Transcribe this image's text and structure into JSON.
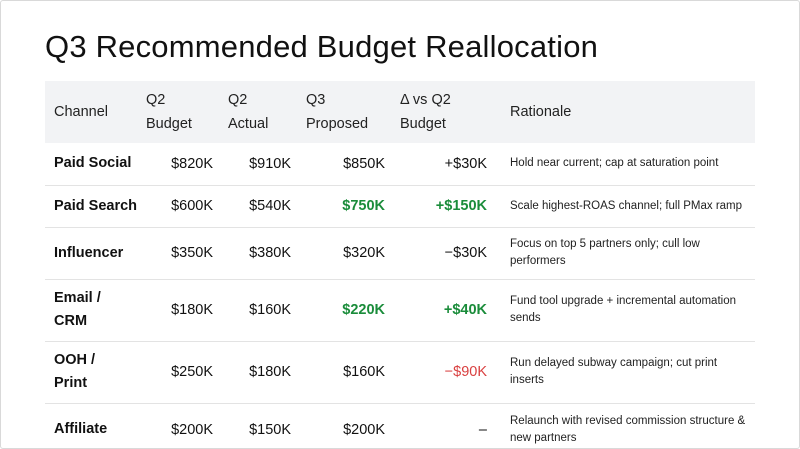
{
  "title": "Q3 Recommended Budget Reallocation",
  "colors": {
    "positive_highlight": "#1a8c3a",
    "negative_highlight": "#d94040",
    "header_background": "#f2f3f5"
  },
  "table": {
    "headers": {
      "channel": "Channel",
      "q2_budget": "Q2\nBudget",
      "q2_actual": "Q2\nActual",
      "q3_proposed": "Q3\nProposed",
      "delta": "Δ vs Q2\nBudget",
      "rationale": "Rationale"
    },
    "rows": [
      {
        "channel": "Paid Social",
        "q2_budget": "$820K",
        "q2_actual": "$910K",
        "q3_proposed": "$850K",
        "delta": "+$30K",
        "rationale": "Hold near current; cap at saturation point"
      },
      {
        "channel": "Paid Search",
        "q2_budget": "$600K",
        "q2_actual": "$540K",
        "q3_proposed": "$750K",
        "delta": "+$150K",
        "rationale": "Scale highest-ROAS channel; full PMax ramp"
      },
      {
        "channel": "Influencer",
        "q2_budget": "$350K",
        "q2_actual": "$380K",
        "q3_proposed": "$320K",
        "delta": "−$30K",
        "rationale": "Focus on top 5 partners only; cull low performers"
      },
      {
        "channel": "Email /\nCRM",
        "q2_budget": "$180K",
        "q2_actual": "$160K",
        "q3_proposed": "$220K",
        "delta": "+$40K",
        "rationale": "Fund tool upgrade + incremental automation sends"
      },
      {
        "channel": "OOH /\nPrint",
        "q2_budget": "$250K",
        "q2_actual": "$180K",
        "q3_proposed": "$160K",
        "delta": "−$90K",
        "rationale": "Run delayed subway campaign; cut print inserts"
      },
      {
        "channel": "Affiliate",
        "q2_budget": "$200K",
        "q2_actual": "$150K",
        "q3_proposed": "$200K",
        "delta": "–",
        "rationale": "Relaunch with revised commission structure & new partners"
      }
    ]
  }
}
